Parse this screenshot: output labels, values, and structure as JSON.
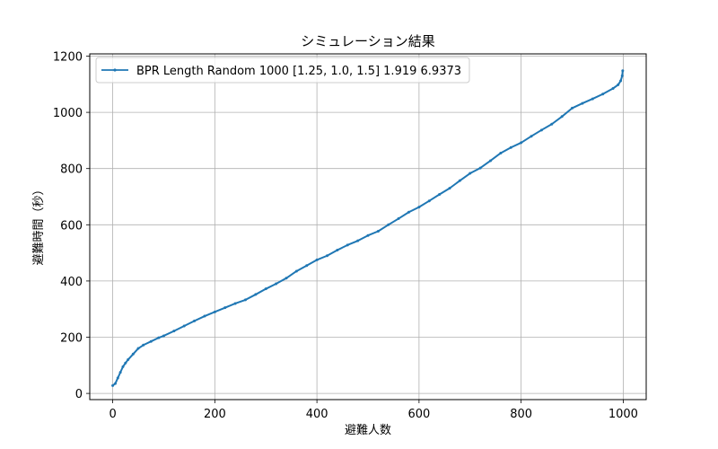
{
  "chart_data": {
    "type": "line",
    "title": "シミュレーション結果",
    "xlabel": "避難人数",
    "ylabel": "避難時間（秒）",
    "xlim": [
      -45,
      1045
    ],
    "ylim": [
      -22,
      1208
    ],
    "xticks": [
      0,
      200,
      400,
      600,
      800,
      1000
    ],
    "yticks": [
      0,
      200,
      400,
      600,
      800,
      1000,
      1200
    ],
    "grid": true,
    "legend_position": "top-left",
    "series": [
      {
        "name": "BPR Length Random 1000 [1.25, 1.0, 1.5] 1.919 6.9373",
        "color": "#1f77b4",
        "x": [
          0,
          5,
          10,
          15,
          20,
          25,
          30,
          40,
          50,
          60,
          75,
          90,
          100,
          120,
          140,
          160,
          180,
          200,
          220,
          240,
          260,
          280,
          300,
          320,
          340,
          360,
          380,
          400,
          420,
          440,
          460,
          480,
          500,
          520,
          540,
          560,
          580,
          600,
          620,
          640,
          660,
          680,
          700,
          720,
          740,
          760,
          780,
          800,
          820,
          840,
          860,
          880,
          900,
          920,
          940,
          960,
          980,
          990,
          995,
          998,
          999
        ],
        "y": [
          28,
          35,
          55,
          75,
          95,
          108,
          120,
          140,
          160,
          172,
          185,
          198,
          205,
          222,
          240,
          258,
          275,
          290,
          305,
          320,
          333,
          352,
          372,
          390,
          410,
          435,
          455,
          475,
          490,
          510,
          528,
          543,
          562,
          577,
          600,
          622,
          645,
          663,
          685,
          708,
          730,
          757,
          783,
          802,
          828,
          855,
          875,
          892,
          915,
          937,
          958,
          985,
          1015,
          1032,
          1048,
          1065,
          1085,
          1098,
          1112,
          1130,
          1148
        ]
      }
    ]
  }
}
